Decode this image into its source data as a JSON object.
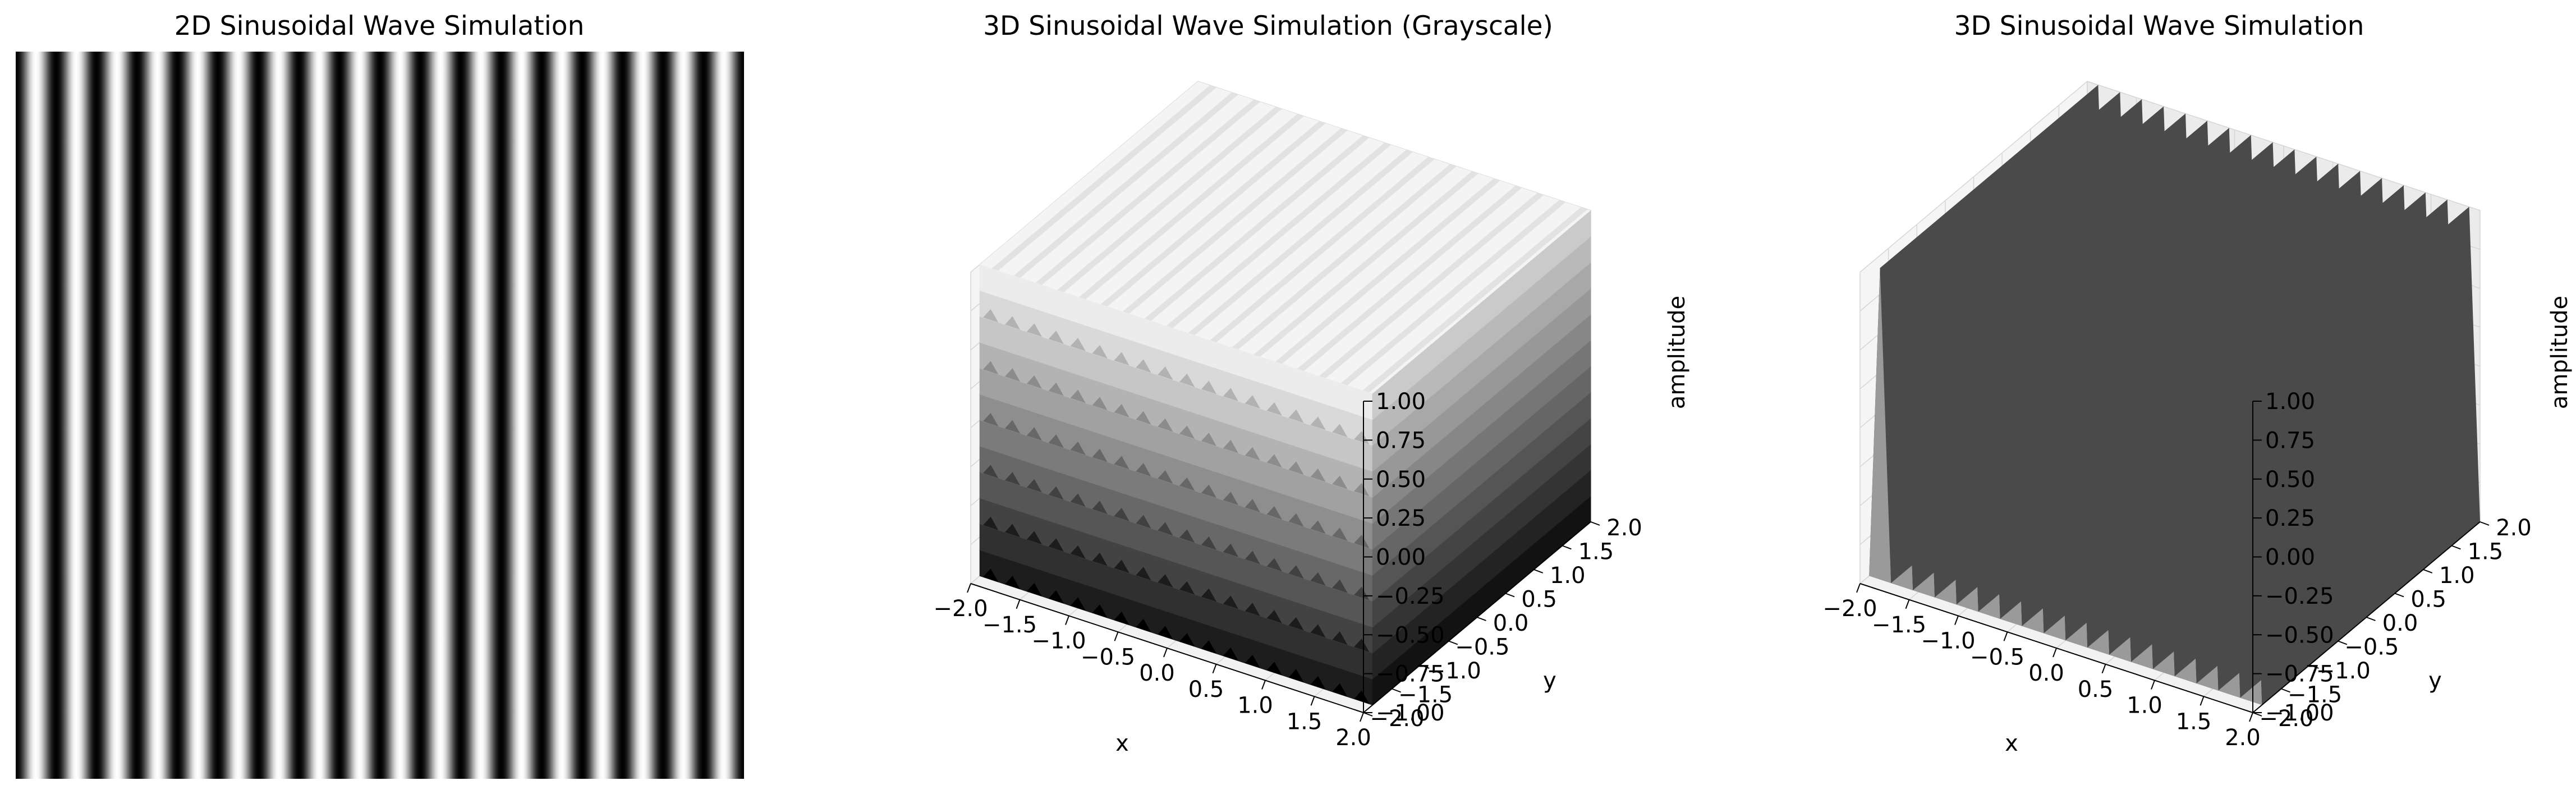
{
  "chart_data": [
    {
      "type": "heatmap",
      "title": "2D Sinusoidal Wave Simulation",
      "xlabel": "",
      "ylabel": "",
      "colormap": "gray",
      "num_stripes": 18,
      "axes_visible": false
    },
    {
      "type": "surface3d",
      "title": "3D Sinusoidal Wave Simulation (Grayscale)",
      "xlabel": "x",
      "ylabel": "y",
      "zlabel": "amplitude",
      "xlim": [
        -2.0,
        2.0
      ],
      "ylim": [
        -2.0,
        2.0
      ],
      "zlim": [
        -1.0,
        1.0
      ],
      "x_ticks": [
        "−2.0",
        "−1.5",
        "−1.0",
        "−0.5",
        "0.0",
        "0.5",
        "1.0",
        "1.5",
        "2.0"
      ],
      "y_ticks": [
        "−2.0",
        "−1.5",
        "−1.0",
        "−0.5",
        "0.0",
        "0.5",
        "1.0",
        "1.5",
        "2.0"
      ],
      "z_ticks": [
        "−1.00",
        "−0.75",
        "−0.50",
        "−0.25",
        "0.00",
        "0.25",
        "0.50",
        "0.75",
        "1.00"
      ],
      "colormap": "gray",
      "num_wave_periods": 18
    },
    {
      "type": "surface3d",
      "title": "3D Sinusoidal Wave Simulation",
      "xlabel": "x",
      "ylabel": "y",
      "zlabel": "amplitude",
      "xlim": [
        -2.0,
        2.0
      ],
      "ylim": [
        -2.0,
        2.0
      ],
      "zlim": [
        -1.0,
        1.0
      ],
      "x_ticks": [
        "−2.0",
        "−1.5",
        "−1.0",
        "−0.5",
        "0.0",
        "0.5",
        "1.0",
        "1.5",
        "2.0"
      ],
      "y_ticks": [
        "−2.0",
        "−1.5",
        "−1.0",
        "−0.5",
        "0.0",
        "0.5",
        "1.0",
        "1.5",
        "2.0"
      ],
      "z_ticks": [
        "−1.00",
        "−0.75",
        "−0.50",
        "−0.25",
        "0.00",
        "0.25",
        "0.50",
        "0.75",
        "1.00"
      ],
      "surface_color": "#3c3c3c",
      "num_wave_periods": 18
    }
  ]
}
